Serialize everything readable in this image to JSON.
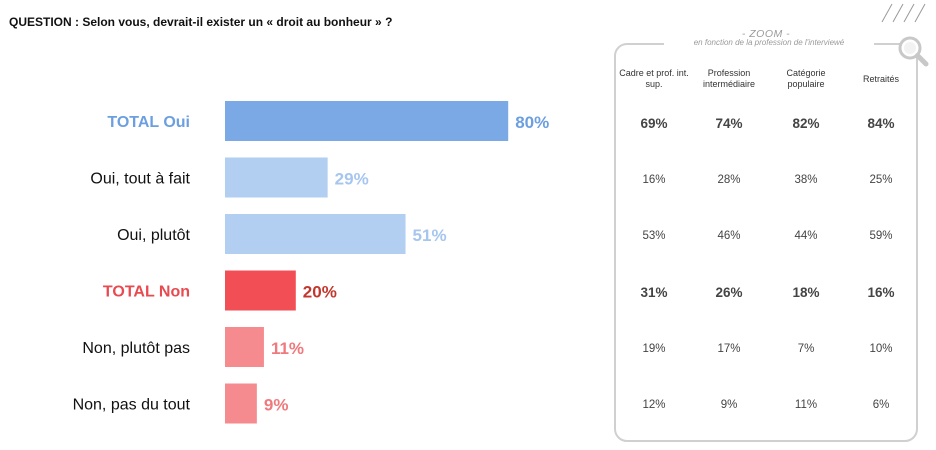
{
  "question": "QUESTION : Selon vous, devrait-il exister un « droit au bonheur » ?",
  "chart_data": {
    "type": "bar",
    "orientation": "horizontal",
    "categories": [
      "TOTAL Oui",
      "Oui, tout à fait",
      "Oui, plutôt",
      "TOTAL Non",
      "Non, plutôt pas",
      "Non, pas du tout"
    ],
    "values": [
      80,
      29,
      51,
      20,
      11,
      9
    ],
    "value_labels": [
      "80%",
      "29%",
      "51%",
      "20%",
      "11%",
      "9%"
    ],
    "bar_colors": [
      "#7aa9e6",
      "#b2cff2",
      "#b2cff2",
      "#f24e55",
      "#f58b8e",
      "#f58b8e"
    ],
    "label_colors": [
      "#6b9fe0",
      "#111111",
      "#111111",
      "#e84a50",
      "#111111",
      "#111111"
    ],
    "value_colors": [
      "#6b9fe0",
      "#a7c6ef",
      "#a7c6ef",
      "#c2372d",
      "#f0797d",
      "#f0797d"
    ],
    "bold_rows": [
      true,
      false,
      false,
      true,
      false,
      false
    ],
    "xlim": [
      0,
      100
    ],
    "grid": false
  },
  "zoom": {
    "title": "- ZOOM -",
    "subtitle": "en fonction de la profession de l'interviewé",
    "columns": [
      {
        "label": "Cadre et prof. int. sup.",
        "values": [
          "69%",
          "16%",
          "53%",
          "31%",
          "19%",
          "12%"
        ]
      },
      {
        "label": "Profession intermédiaire",
        "values": [
          "74%",
          "28%",
          "46%",
          "26%",
          "17%",
          "9%"
        ]
      },
      {
        "label": "Catégorie populaire",
        "values": [
          "82%",
          "38%",
          "44%",
          "18%",
          "7%",
          "11%"
        ]
      },
      {
        "label": "Retraités",
        "values": [
          "84%",
          "25%",
          "59%",
          "16%",
          "10%",
          "6%"
        ]
      }
    ]
  }
}
